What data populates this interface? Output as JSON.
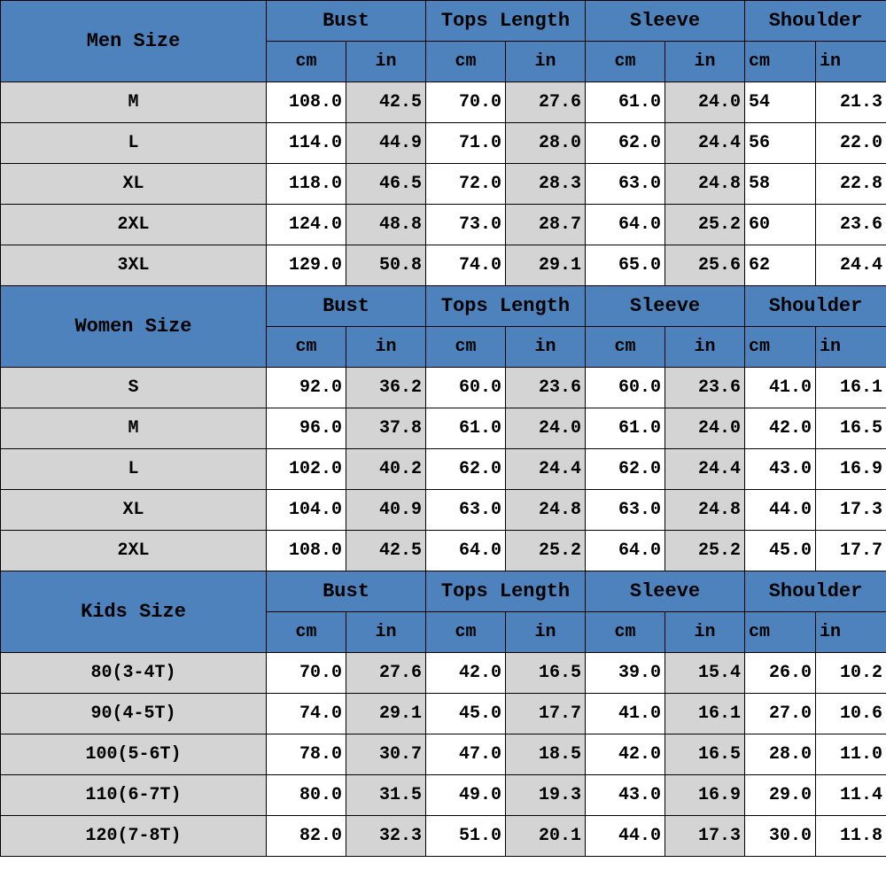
{
  "colors": {
    "header_bg": "#4d82bc",
    "shade_bg": "#d4d4d4",
    "border": "#000000",
    "white": "#ffffff"
  },
  "sections": {
    "men": {
      "label": "Men Size",
      "cols": [
        "Bust",
        "Tops Length",
        "Sleeve",
        "Shoulder"
      ],
      "units": [
        "cm",
        "in",
        "cm",
        "in",
        "cm",
        "in",
        "cm",
        "in"
      ],
      "rows": [
        {
          "name": "M",
          "v": [
            "108.0",
            "42.5",
            "70.0",
            "27.6",
            "61.0",
            "24.0",
            "54",
            "21.3"
          ]
        },
        {
          "name": "L",
          "v": [
            "114.0",
            "44.9",
            "71.0",
            "28.0",
            "62.0",
            "24.4",
            "56",
            "22.0"
          ]
        },
        {
          "name": "XL",
          "v": [
            "118.0",
            "46.5",
            "72.0",
            "28.3",
            "63.0",
            "24.8",
            "58",
            "22.8"
          ]
        },
        {
          "name": "2XL",
          "v": [
            "124.0",
            "48.8",
            "73.0",
            "28.7",
            "64.0",
            "25.2",
            "60",
            "23.6"
          ]
        },
        {
          "name": "3XL",
          "v": [
            "129.0",
            "50.8",
            "74.0",
            "29.1",
            "65.0",
            "25.6",
            "62",
            "24.4"
          ]
        }
      ]
    },
    "women": {
      "label": "Women Size",
      "cols": [
        "Bust",
        "Tops Length",
        "Sleeve",
        "Shoulder"
      ],
      "units": [
        "cm",
        "in",
        "cm",
        "in",
        "cm",
        "in",
        "cm",
        "in"
      ],
      "rows": [
        {
          "name": "S",
          "v": [
            "92.0",
            "36.2",
            "60.0",
            "23.6",
            "60.0",
            "23.6",
            "41.0",
            "16.1"
          ]
        },
        {
          "name": "M",
          "v": [
            "96.0",
            "37.8",
            "61.0",
            "24.0",
            "61.0",
            "24.0",
            "42.0",
            "16.5"
          ]
        },
        {
          "name": "L",
          "v": [
            "102.0",
            "40.2",
            "62.0",
            "24.4",
            "62.0",
            "24.4",
            "43.0",
            "16.9"
          ]
        },
        {
          "name": "XL",
          "v": [
            "104.0",
            "40.9",
            "63.0",
            "24.8",
            "63.0",
            "24.8",
            "44.0",
            "17.3"
          ]
        },
        {
          "name": "2XL",
          "v": [
            "108.0",
            "42.5",
            "64.0",
            "25.2",
            "64.0",
            "25.2",
            "45.0",
            "17.7"
          ]
        }
      ]
    },
    "kids": {
      "label": "Kids Size",
      "cols": [
        "Bust",
        "Tops Length",
        "Sleeve",
        "Shoulder"
      ],
      "units": [
        "cm",
        "in",
        "cm",
        "in",
        "cm",
        "in",
        "cm",
        "in"
      ],
      "rows": [
        {
          "name": "80(3-4T)",
          "v": [
            "70.0",
            "27.6",
            "42.0",
            "16.5",
            "39.0",
            "15.4",
            "26.0",
            "10.2"
          ]
        },
        {
          "name": "90(4-5T)",
          "v": [
            "74.0",
            "29.1",
            "45.0",
            "17.7",
            "41.0",
            "16.1",
            "27.0",
            "10.6"
          ]
        },
        {
          "name": "100(5-6T)",
          "v": [
            "78.0",
            "30.7",
            "47.0",
            "18.5",
            "42.0",
            "16.5",
            "28.0",
            "11.0"
          ]
        },
        {
          "name": "110(6-7T)",
          "v": [
            "80.0",
            "31.5",
            "49.0",
            "19.3",
            "43.0",
            "16.9",
            "29.0",
            "11.4"
          ]
        },
        {
          "name": "120(7-8T)",
          "v": [
            "82.0",
            "32.3",
            "51.0",
            "20.1",
            "44.0",
            "17.3",
            "30.0",
            "11.8"
          ]
        }
      ]
    }
  },
  "styling": {
    "shoulder_cm_col7_left_align_sections": [
      "men"
    ],
    "font_family": "Courier New, monospace",
    "font_weight": "bold",
    "cell_fontsize": 20,
    "header_fontsize": 22
  }
}
